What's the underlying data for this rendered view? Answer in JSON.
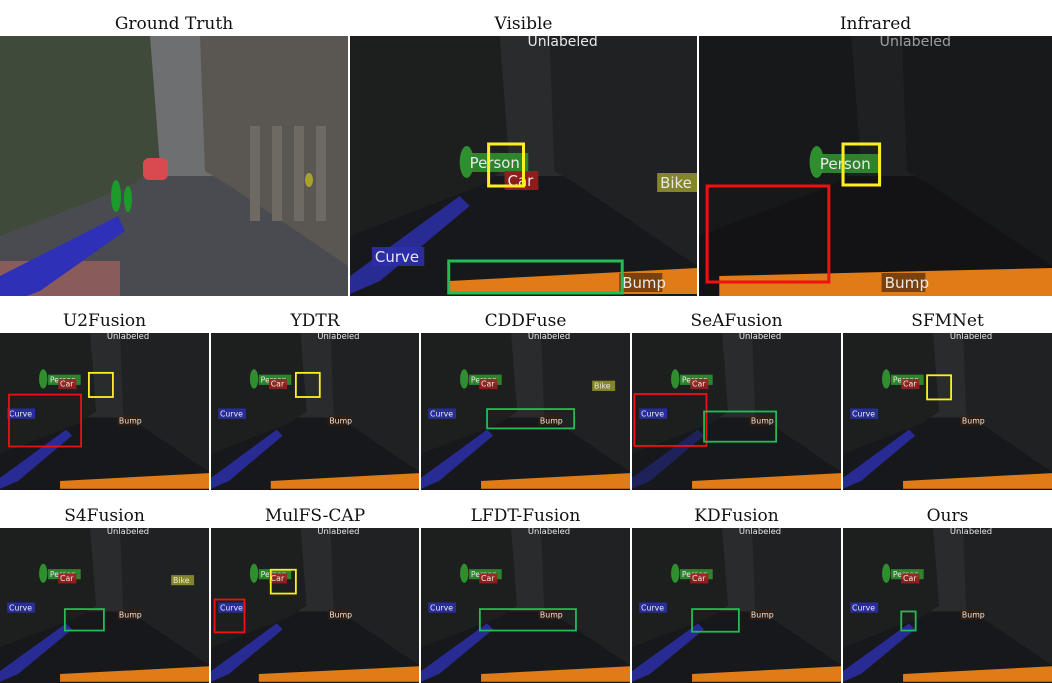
{
  "rows": [
    {
      "panels": [
        {
          "title": "Ground Truth",
          "kind": "gt"
        },
        {
          "title": "Visible",
          "kind": "vis"
        },
        {
          "title": "Infrared",
          "kind": "ir"
        }
      ]
    },
    {
      "panels": [
        {
          "title": "U2Fusion",
          "kind": "u2"
        },
        {
          "title": "YDTR",
          "kind": "ydtr"
        },
        {
          "title": "CDDFuse",
          "kind": "cdd"
        },
        {
          "title": "SeAFusion",
          "kind": "sea"
        },
        {
          "title": "SFMNet",
          "kind": "sfm"
        }
      ]
    },
    {
      "panels": [
        {
          "title": "S4Fusion",
          "kind": "s4"
        },
        {
          "title": "MulFS-CAP",
          "kind": "mulfs"
        },
        {
          "title": "LFDT-Fusion",
          "kind": "lfdt"
        },
        {
          "title": "KDFusion",
          "kind": "kd"
        },
        {
          "title": "Ours",
          "kind": "ours"
        }
      ]
    }
  ],
  "seg_labels": {
    "unlabeled": "Unlabeled",
    "person": "Person",
    "car": "Car",
    "bike": "Bike",
    "curve": "Curve",
    "bump": "Bump"
  },
  "colors": {
    "person": "#2f8f2f",
    "car": "#9a1e1e",
    "bike": "#8f8f2a",
    "curve": "#2b2fa8",
    "bump": "#e07c18",
    "box_yellow": "#ffee22",
    "box_red": "#ee1111",
    "box_green": "#22bb55"
  }
}
